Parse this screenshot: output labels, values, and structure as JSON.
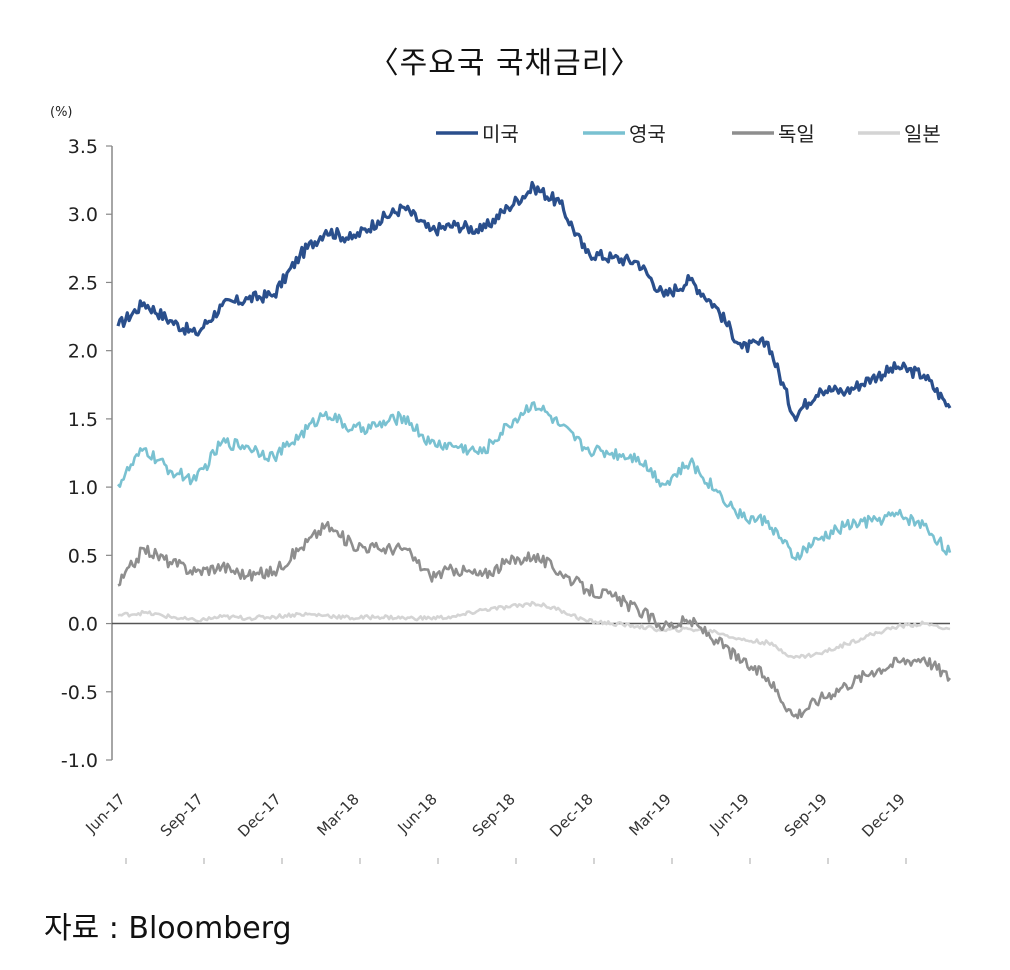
{
  "title": "〈주요국 국채금리〉",
  "source": "자료 : Bloomberg",
  "chart_data": {
    "type": "line",
    "unit": "(%)",
    "ylim": [
      -1.0,
      3.5
    ],
    "yticks": [
      "3.5",
      "3.0",
      "2.5",
      "2.0",
      "1.5",
      "1.0",
      "0.5",
      "0.0",
      "-0.5",
      "-1.0"
    ],
    "xticks": [
      "Jun-17",
      "Sep-17",
      "Dec-17",
      "Mar-18",
      "Jun-18",
      "Sep-18",
      "Dec-18",
      "Mar-19",
      "Jun-19",
      "Sep-19",
      "Dec-19"
    ],
    "x": [
      "Jun-17",
      "Jul-17",
      "Aug-17",
      "Sep-17",
      "Oct-17",
      "Nov-17",
      "Dec-17",
      "Jan-18",
      "Feb-18",
      "Mar-18",
      "Apr-18",
      "May-18",
      "Jun-18",
      "Jul-18",
      "Aug-18",
      "Sep-18",
      "Oct-18",
      "Nov-18",
      "Dec-18",
      "Jan-19",
      "Feb-19",
      "Mar-19",
      "Apr-19",
      "May-19",
      "Jun-19",
      "Jul-19",
      "Aug-19",
      "Sep-19",
      "Oct-19",
      "Nov-19",
      "Dec-19",
      "Jan-20",
      "Feb-20"
    ],
    "legend_position": "top-right",
    "grid": false,
    "series": [
      {
        "name": "미국",
        "color": "#2a4f8c",
        "values": [
          2.18,
          2.35,
          2.22,
          2.12,
          2.33,
          2.38,
          2.41,
          2.7,
          2.88,
          2.82,
          2.95,
          3.05,
          2.88,
          2.92,
          2.88,
          3.05,
          3.2,
          3.08,
          2.72,
          2.68,
          2.65,
          2.4,
          2.52,
          2.32,
          2.02,
          2.06,
          1.52,
          1.72,
          1.7,
          1.8,
          1.88,
          1.82,
          1.58
        ]
      },
      {
        "name": "영국",
        "color": "#79c1d1",
        "values": [
          1.02,
          1.28,
          1.12,
          1.05,
          1.33,
          1.3,
          1.22,
          1.38,
          1.55,
          1.42,
          1.45,
          1.52,
          1.32,
          1.3,
          1.25,
          1.45,
          1.62,
          1.45,
          1.28,
          1.25,
          1.22,
          1.02,
          1.18,
          0.98,
          0.78,
          0.75,
          0.48,
          0.62,
          0.72,
          0.75,
          0.8,
          0.72,
          0.52
        ]
      },
      {
        "name": "독일",
        "color": "#8e8e8e",
        "values": [
          0.28,
          0.55,
          0.45,
          0.38,
          0.42,
          0.35,
          0.38,
          0.55,
          0.72,
          0.58,
          0.55,
          0.55,
          0.35,
          0.4,
          0.35,
          0.45,
          0.5,
          0.38,
          0.25,
          0.2,
          0.1,
          -0.02,
          0.02,
          -0.12,
          -0.28,
          -0.4,
          -0.68,
          -0.55,
          -0.45,
          -0.35,
          -0.28,
          -0.25,
          -0.4
        ]
      },
      {
        "name": "일본",
        "color": "#d4d4d4",
        "values": [
          0.06,
          0.08,
          0.05,
          0.02,
          0.05,
          0.04,
          0.05,
          0.07,
          0.06,
          0.04,
          0.05,
          0.04,
          0.04,
          0.05,
          0.1,
          0.12,
          0.15,
          0.1,
          0.02,
          0.0,
          -0.02,
          -0.05,
          -0.04,
          -0.06,
          -0.12,
          -0.14,
          -0.25,
          -0.22,
          -0.15,
          -0.08,
          -0.02,
          0.0,
          -0.04
        ]
      }
    ]
  }
}
